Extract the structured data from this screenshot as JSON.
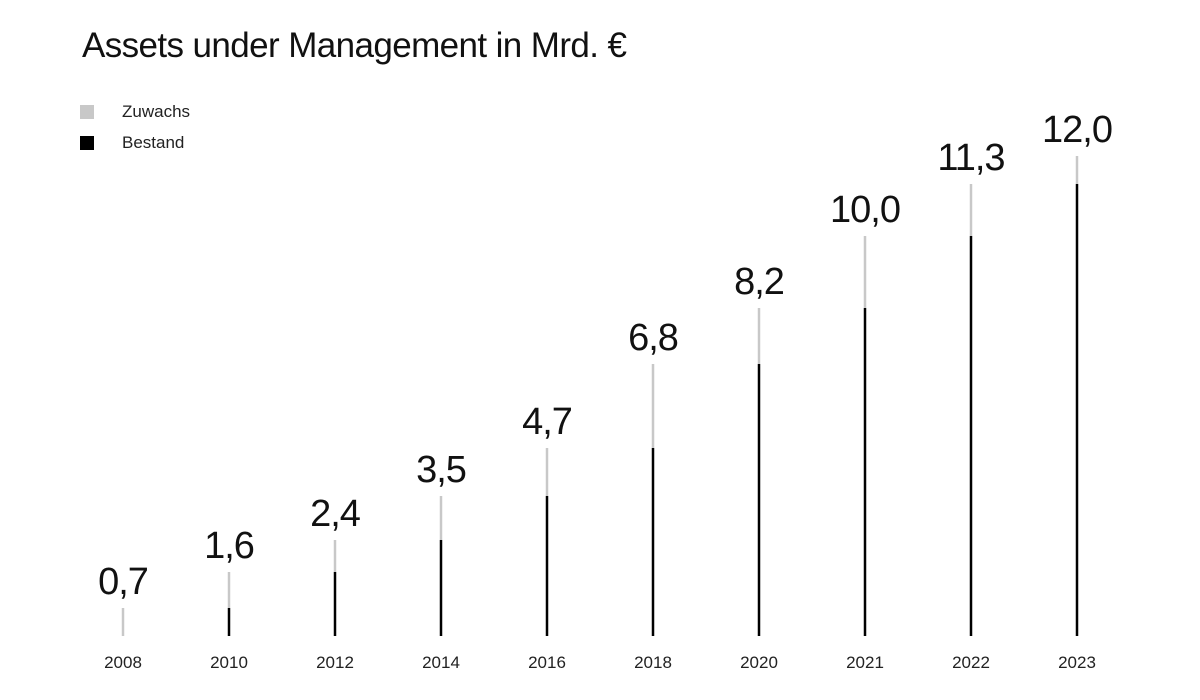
{
  "chart_data": {
    "type": "bar",
    "title": "Assets under Management in Mrd. €",
    "xlabel": "",
    "ylabel": "",
    "ylim": [
      0,
      12.0
    ],
    "grid": false,
    "legend_position": "top-left",
    "categories": [
      "2008",
      "2010",
      "2012",
      "2014",
      "2016",
      "2018",
      "2020",
      "2021",
      "2022",
      "2023"
    ],
    "value_labels": [
      "0,7",
      "1,6",
      "2,4",
      "3,5",
      "4,7",
      "6,8",
      "8,2",
      "10,0",
      "11,3",
      "12,0"
    ],
    "series": [
      {
        "name": "Bestand",
        "color": "#000000",
        "values": [
          0,
          0.7,
          1.6,
          2.4,
          3.5,
          4.7,
          6.8,
          8.2,
          10.0,
          11.3
        ]
      },
      {
        "name": "Zuwachs",
        "color": "#c8c8c8",
        "values": [
          0.7,
          0.9,
          0.8,
          1.1,
          1.2,
          2.1,
          1.4,
          1.8,
          1.3,
          0.7
        ]
      }
    ],
    "totals": [
      0.7,
      1.6,
      2.4,
      3.5,
      4.7,
      6.8,
      8.2,
      10.0,
      11.3,
      12.0
    ]
  },
  "legend": [
    {
      "label": "Zuwachs",
      "color": "#c8c8c8"
    },
    {
      "label": "Bestand",
      "color": "#000000"
    }
  ]
}
